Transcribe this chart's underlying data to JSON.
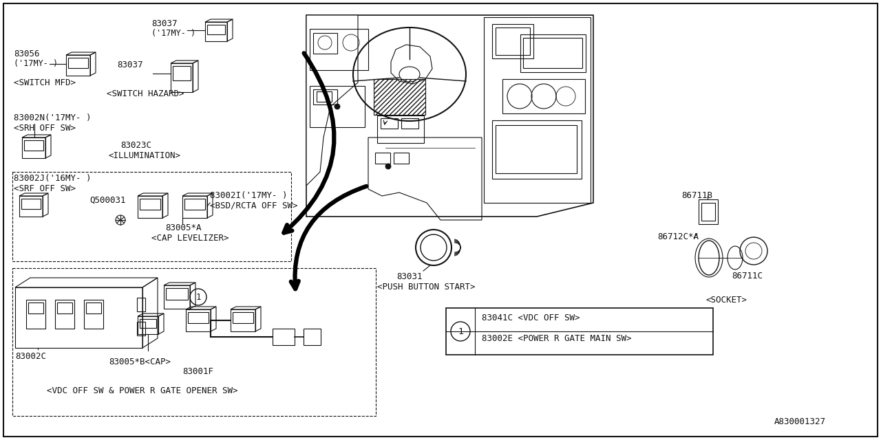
{
  "bg_color": "#ffffff",
  "diagram_id": "A830001327",
  "font_color": "#111111",
  "line_color": "#111111",
  "parts_text": {
    "83037_top_num": "83037",
    "83037_top_sub": "('17MY- )",
    "83037_mid_num": "83037",
    "83037_mid_label": "<SWITCH HAZARD>",
    "83056_num": "83056",
    "83056_sub": "('17MY- )",
    "83056_label": "<SWITCH MFD>",
    "83002N_num": "83002N('17MY- )",
    "83002N_label": "<SRH OFF SW>",
    "83023C_num": "83023C",
    "83023C_label": "<ILLUMINATION>",
    "83002J_num": "83002J('16MY- )",
    "83002J_label": "<SRF OFF SW>",
    "Q500031": "Q500031",
    "83002I_num": "83002I('17MY- )",
    "83002I_label": "<BSD/RCTA OFF SW>",
    "83005A_num": "83005*A",
    "83005A_label": "<CAP LEVELIZER>",
    "83002C": "83002C",
    "83005B": "83005*B<CAP>",
    "83001F_num": "83001F",
    "83001F_label": "<VDC OFF SW & POWER R GATE OPENER SW>",
    "83031_num": "83031",
    "83031_label": "<PUSH BUTTON START>",
    "86711B": "86711B",
    "86712CA": "86712C*A",
    "86711C": "86711C",
    "socket_label": "<SOCKET>",
    "legend1_part": "83041C <VDC OFF SW>",
    "legend2_part": "83002E <POWER R GATE MAIN SW>"
  }
}
